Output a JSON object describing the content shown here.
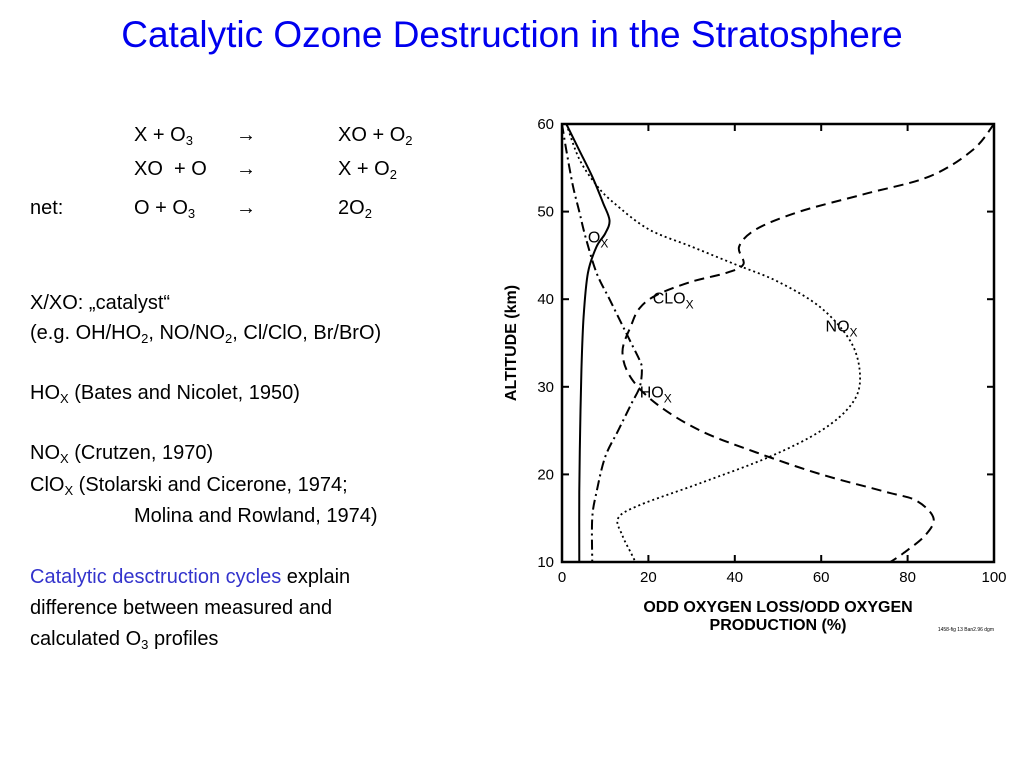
{
  "title": "Catalytic Ozone Destruction in the Stratosphere",
  "reactions": {
    "r1": {
      "lhs_a": "X + O",
      "lhs_sub": "3",
      "arrow": "→",
      "rhs_a": "XO + O",
      "rhs_sub": "2"
    },
    "r2": {
      "lhs_a": "XO  + O",
      "arrow": "→",
      "rhs_a": "X + O",
      "rhs_sub": "2"
    },
    "net": {
      "label": "net:",
      "lhs_a": "O + O",
      "lhs_sub": "3",
      "arrow": "→",
      "rhs_a": "2O",
      "rhs_sub": "2"
    }
  },
  "notes": {
    "catalyst": "X/XO: „catalyst“",
    "eg": {
      "p1": "(e.g. OH/HO",
      "s1": "2",
      "p2": ", NO/NO",
      "s2": "2",
      "p3": ", Cl/ClO, Br/BrO)"
    },
    "hox": {
      "base": "HO",
      "sub": "X",
      "rest": " (Bates and Nicolet, 1950)"
    },
    "nox": {
      "base": "NO",
      "sub": "X",
      "rest": " (Crutzen, 1970)"
    },
    "clox": {
      "base": "ClO",
      "sub": "X",
      "rest": " (Stolarski and Cicerone, 1974;",
      "line2": "Molina and Rowland, 1974)"
    },
    "explain": {
      "highlight": "Catalytic desctruction cycles",
      "rest1": " explain",
      "line2": "difference between measured and",
      "line3_a": "calculated O",
      "line3_sub": "3",
      "line3_b": " profiles"
    }
  },
  "chart_data": {
    "type": "line",
    "xlabel_line1": "ODD OXYGEN LOSS/ODD OXYGEN",
    "xlabel_line2": "PRODUCTION (%)",
    "ylabel": "ALTITUDE (km)",
    "xlim": [
      0,
      100
    ],
    "ylim": [
      10,
      60
    ],
    "x_ticks": [
      "0",
      "20",
      "40",
      "60",
      "80",
      "100"
    ],
    "y_ticks": [
      "10",
      "20",
      "30",
      "40",
      "50",
      "60"
    ],
    "grid": false,
    "series": [
      {
        "name": "O",
        "name_sub": "X",
        "style": "solid",
        "points": [
          [
            1,
            60
          ],
          [
            4,
            57
          ],
          [
            7,
            54
          ],
          [
            9.5,
            51
          ],
          [
            11,
            49
          ],
          [
            10,
            47.5
          ],
          [
            8,
            46
          ],
          [
            6,
            43
          ],
          [
            5,
            38
          ],
          [
            4.5,
            32
          ],
          [
            4.2,
            25
          ],
          [
            4,
            18
          ],
          [
            4,
            10
          ]
        ]
      },
      {
        "name": "CLO",
        "name_sub": "X",
        "style": "dashdot",
        "points": [
          [
            0,
            60
          ],
          [
            1,
            57
          ],
          [
            2.5,
            53
          ],
          [
            4,
            50
          ],
          [
            5.5,
            47
          ],
          [
            8,
            43
          ],
          [
            11,
            40
          ],
          [
            14,
            37
          ],
          [
            16,
            35
          ],
          [
            18,
            33
          ],
          [
            18.5,
            32
          ],
          [
            18,
            30
          ],
          [
            16,
            28
          ],
          [
            13,
            25
          ],
          [
            10,
            22
          ],
          [
            8,
            18
          ],
          [
            7,
            15
          ],
          [
            7,
            10
          ]
        ]
      },
      {
        "name": "NO",
        "name_sub": "X",
        "style": "dotted",
        "points": [
          [
            1,
            60
          ],
          [
            4,
            56
          ],
          [
            8,
            53
          ],
          [
            12,
            51
          ],
          [
            20,
            48
          ],
          [
            30,
            46
          ],
          [
            40,
            44
          ],
          [
            50,
            42
          ],
          [
            60,
            39
          ],
          [
            67,
            35
          ],
          [
            69,
            31
          ],
          [
            67,
            28
          ],
          [
            60,
            25
          ],
          [
            48,
            22
          ],
          [
            32,
            19
          ],
          [
            18,
            16.5
          ],
          [
            13,
            15
          ],
          [
            14,
            13
          ],
          [
            16,
            11
          ],
          [
            17,
            10
          ]
        ]
      },
      {
        "name": "HO",
        "name_sub": "X",
        "style": "dashed",
        "points": [
          [
            100,
            60
          ],
          [
            95,
            57
          ],
          [
            85,
            54
          ],
          [
            70,
            52
          ],
          [
            55,
            50
          ],
          [
            45,
            48
          ],
          [
            41,
            46
          ],
          [
            42,
            44
          ],
          [
            38,
            43
          ],
          [
            30,
            42
          ],
          [
            22,
            40.5
          ],
          [
            18,
            39
          ],
          [
            16,
            37
          ],
          [
            14,
            34
          ],
          [
            16,
            31
          ],
          [
            22,
            28
          ],
          [
            32,
            25
          ],
          [
            45,
            22.5
          ],
          [
            60,
            20
          ],
          [
            75,
            18
          ],
          [
            82,
            17
          ],
          [
            86,
            15
          ],
          [
            84,
            13
          ],
          [
            79,
            11
          ],
          [
            76,
            10
          ]
        ]
      }
    ],
    "curve_labels": [
      {
        "series": "O",
        "text": "O",
        "sub": "X",
        "x": 6,
        "y": 46.5
      },
      {
        "series": "CLO",
        "text": "CLO",
        "sub": "X",
        "x": 21,
        "y": 39.5
      },
      {
        "series": "NO",
        "text": "NO",
        "sub": "X",
        "x": 61,
        "y": 36.3
      },
      {
        "series": "HO",
        "text": "HO",
        "sub": "X",
        "x": 18,
        "y": 28.8
      }
    ],
    "footnote": "1458-fig 13 Ban2.96  dgm"
  }
}
